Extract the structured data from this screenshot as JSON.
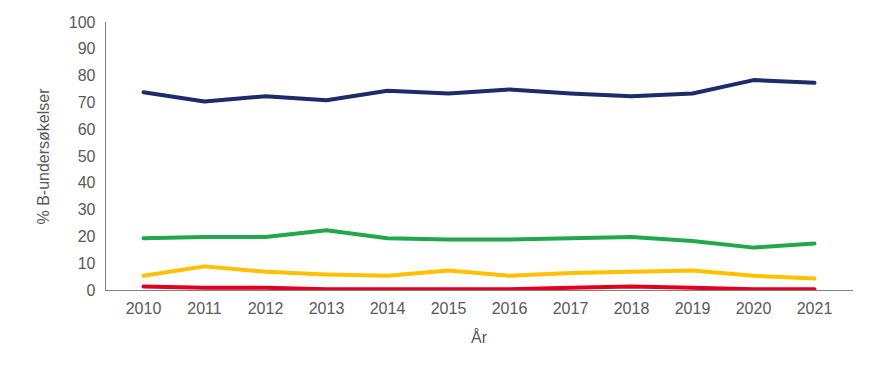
{
  "chart_data": {
    "type": "line",
    "x_label": "År",
    "y_label": "% B-undersøkelser",
    "categories": [
      "2010",
      "2011",
      "2012",
      "2013",
      "2014",
      "2015",
      "2016",
      "2017",
      "2018",
      "2019",
      "2020",
      "2021"
    ],
    "series": [
      {
        "color": "#1b2b6b",
        "values": [
          74,
          70.5,
          72.5,
          71,
          74.5,
          73.5,
          75,
          73.5,
          72.5,
          73.5,
          78.5,
          77.5
        ]
      },
      {
        "color": "#22a84a",
        "values": [
          19.5,
          20,
          20,
          22.5,
          19.5,
          19,
          19,
          19.5,
          20,
          18.5,
          16,
          17.5
        ]
      },
      {
        "color": "#ffc000",
        "values": [
          5.5,
          9,
          7,
          6,
          5.5,
          7.5,
          5.5,
          6.5,
          7,
          7.5,
          5.5,
          4.5
        ]
      },
      {
        "color": "#e3001b",
        "values": [
          1.5,
          1,
          1,
          0.5,
          0.5,
          0.5,
          0.5,
          1,
          1.5,
          1,
          0.5,
          0.5
        ]
      }
    ],
    "ylim": [
      0,
      100
    ],
    "yticks": [
      0,
      10,
      20,
      30,
      40,
      50,
      60,
      70,
      80,
      90,
      100
    ],
    "grid": false
  }
}
